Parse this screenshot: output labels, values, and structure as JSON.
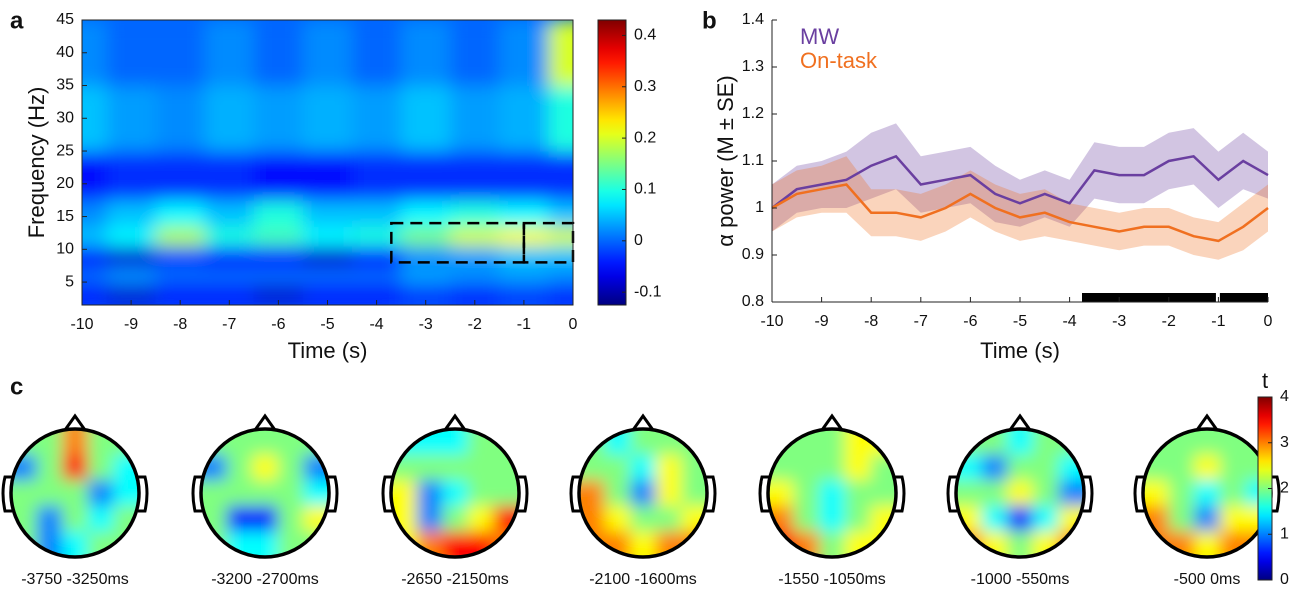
{
  "chart_data": [
    {
      "type": "heatmap",
      "panel_label": "a",
      "x_label": "Time (s)",
      "y_label": "Frequency (Hz)",
      "x": [
        -10,
        -9,
        -8,
        -7,
        -6,
        -5,
        -4,
        -3,
        -2,
        -1,
        0
      ],
      "y": [
        3,
        6,
        9,
        12,
        15,
        20,
        30,
        40
      ],
      "values": [
        [
          -0.05,
          -0.08,
          -0.05,
          -0.05,
          -0.08,
          -0.05,
          -0.05,
          -0.03,
          -0.05,
          -0.03,
          -0.05
        ],
        [
          0.0,
          0.02,
          0.0,
          0.0,
          0.0,
          0.0,
          0.0,
          0.03,
          0.02,
          0.03,
          0.02
        ],
        [
          -0.05,
          -0.08,
          -0.02,
          -0.05,
          -0.05,
          -0.08,
          -0.05,
          0.02,
          0.03,
          0.05,
          0.05
        ],
        [
          0.05,
          0.08,
          0.18,
          0.1,
          0.12,
          0.08,
          0.1,
          0.15,
          0.2,
          0.22,
          0.2
        ],
        [
          0.02,
          0.05,
          0.08,
          0.05,
          0.1,
          0.05,
          0.05,
          0.08,
          0.1,
          0.08,
          0.05
        ],
        [
          -0.05,
          -0.03,
          -0.03,
          -0.03,
          -0.05,
          -0.05,
          -0.03,
          -0.03,
          -0.03,
          -0.03,
          -0.03
        ],
        [
          0.05,
          0.03,
          0.02,
          0.04,
          0.03,
          0.04,
          0.03,
          0.05,
          0.03,
          0.04,
          0.1
        ],
        [
          0.02,
          0.0,
          0.0,
          0.02,
          0.0,
          0.02,
          0.0,
          0.02,
          0.0,
          0.02,
          0.2
        ]
      ],
      "xlim": [
        -10,
        0
      ],
      "ylim": [
        1.5,
        45
      ],
      "xticks": [
        -10,
        -9,
        -8,
        -7,
        -6,
        -5,
        -4,
        -3,
        -2,
        -1,
        0
      ],
      "yticks": [
        5,
        10,
        15,
        20,
        25,
        30,
        35,
        40,
        45
      ],
      "clim": [
        -0.125,
        0.43
      ],
      "cticks": [
        -0.1,
        0,
        0.1,
        0.2,
        0.3,
        0.4
      ],
      "boxes": [
        {
          "x": [
            -3.7,
            -1
          ],
          "y": [
            8,
            14
          ]
        },
        {
          "x": [
            -1,
            0
          ],
          "y": [
            8,
            14
          ]
        }
      ]
    },
    {
      "type": "line",
      "panel_label": "b",
      "x_label": "Time (s)",
      "y_label": "α power (M ± SE)",
      "x": [
        -10,
        -9.5,
        -9,
        -8.5,
        -8,
        -7.5,
        -7,
        -6.5,
        -6,
        -5.5,
        -5,
        -4.5,
        -4,
        -3.5,
        -3,
        -2.5,
        -2,
        -1.5,
        -1,
        -0.5,
        0
      ],
      "series": [
        {
          "name": "MW",
          "color": "#6a3fa0",
          "values": [
            1.0,
            1.04,
            1.05,
            1.06,
            1.09,
            1.11,
            1.05,
            1.06,
            1.07,
            1.03,
            1.01,
            1.03,
            1.01,
            1.08,
            1.07,
            1.07,
            1.1,
            1.11,
            1.06,
            1.1,
            1.07
          ],
          "error": [
            0.05,
            0.05,
            0.05,
            0.06,
            0.07,
            0.07,
            0.06,
            0.06,
            0.06,
            0.06,
            0.05,
            0.05,
            0.05,
            0.06,
            0.06,
            0.06,
            0.06,
            0.06,
            0.06,
            0.06,
            0.05
          ]
        },
        {
          "name": "On-task",
          "color": "#f07020",
          "values": [
            1.0,
            1.03,
            1.04,
            1.05,
            0.99,
            0.99,
            0.98,
            1.0,
            1.03,
            1.0,
            0.98,
            0.99,
            0.97,
            0.96,
            0.95,
            0.96,
            0.96,
            0.94,
            0.93,
            0.96,
            1.0
          ],
          "error": [
            0.05,
            0.05,
            0.05,
            0.06,
            0.05,
            0.05,
            0.05,
            0.05,
            0.05,
            0.05,
            0.05,
            0.05,
            0.04,
            0.04,
            0.04,
            0.04,
            0.04,
            0.04,
            0.04,
            0.05,
            0.05
          ]
        }
      ],
      "xlim": [
        -10,
        0
      ],
      "ylim": [
        0.8,
        1.4
      ],
      "xticks": [
        -10,
        -9,
        -8,
        -7,
        -6,
        -5,
        -4,
        -3,
        -2,
        -1,
        0
      ],
      "yticks": [
        0.8,
        0.9,
        1,
        1.1,
        1.2,
        1.3,
        1.4
      ],
      "significance": [
        [
          -3.75,
          -1.05
        ],
        [
          -0.97,
          0
        ]
      ],
      "significance_color": "#000000",
      "legend": "upper left"
    },
    {
      "type": "topoplot",
      "panel_label": "c",
      "colorbar_title": "t",
      "clim": [
        0,
        4
      ],
      "cticks": [
        0,
        1,
        2,
        3,
        4
      ],
      "heads": [
        {
          "label": "-3750 -3250ms",
          "values": [
            [
              2,
              2,
              3,
              2,
              2
            ],
            [
              1,
              2,
              3.5,
              2,
              1.5
            ],
            [
              2,
              2,
              2,
              1,
              1.5
            ],
            [
              2,
              1,
              2,
              1.5,
              2
            ],
            [
              2,
              1,
              1.5,
              2,
              2
            ]
          ]
        },
        {
          "label": "-3200 -2700ms",
          "values": [
            [
              2,
              2,
              2,
              2,
              2
            ],
            [
              1,
              2,
              2.5,
              2,
              1
            ],
            [
              2,
              2,
              2,
              2,
              1.5
            ],
            [
              2,
              0.5,
              0.5,
              2,
              2.5
            ],
            [
              2,
              1.5,
              1.5,
              2,
              2
            ]
          ]
        },
        {
          "label": "-2650 -2150ms",
          "values": [
            [
              1.5,
              1.5,
              1.5,
              2,
              2
            ],
            [
              2,
              2,
              2,
              2,
              2
            ],
            [
              2.5,
              1,
              1.5,
              2,
              2
            ],
            [
              2.5,
              1,
              2,
              2.5,
              3.5
            ],
            [
              2.5,
              3,
              3.5,
              3.5,
              3
            ]
          ]
        },
        {
          "label": "-2100 -1600ms",
          "values": [
            [
              2,
              1.5,
              2,
              2,
              2
            ],
            [
              2,
              2,
              1.5,
              2.5,
              2
            ],
            [
              3,
              2,
              1,
              2.5,
              2
            ],
            [
              3,
              2.5,
              2,
              2,
              2.5
            ],
            [
              3,
              3,
              2.5,
              3,
              3
            ]
          ]
        },
        {
          "label": "-1550 -1050ms",
          "values": [
            [
              2,
              2,
              2,
              2.5,
              2.5
            ],
            [
              2,
              2,
              2,
              2.5,
              2
            ],
            [
              2.5,
              2,
              1.5,
              2,
              2
            ],
            [
              3,
              2,
              1.5,
              2,
              2.5
            ],
            [
              3.5,
              3,
              2,
              2.5,
              2.5
            ]
          ]
        },
        {
          "label": "-1000 -550ms",
          "values": [
            [
              2,
              2,
              1.5,
              2,
              2
            ],
            [
              1.5,
              1,
              2,
              2,
              1.5
            ],
            [
              2,
              2,
              2.5,
              2,
              1
            ],
            [
              2.5,
              1.5,
              0.5,
              1.5,
              2.5
            ],
            [
              3,
              2.5,
              2,
              2.5,
              3
            ]
          ]
        },
        {
          "label": "-500 0ms",
          "values": [
            [
              2,
              2,
              2,
              2,
              2
            ],
            [
              2,
              2,
              2.5,
              2,
              2
            ],
            [
              2.5,
              2,
              1.5,
              2,
              1.5
            ],
            [
              3,
              2,
              1,
              2.5,
              2.5
            ],
            [
              3,
              3,
              2.5,
              3,
              3
            ]
          ]
        }
      ]
    }
  ]
}
